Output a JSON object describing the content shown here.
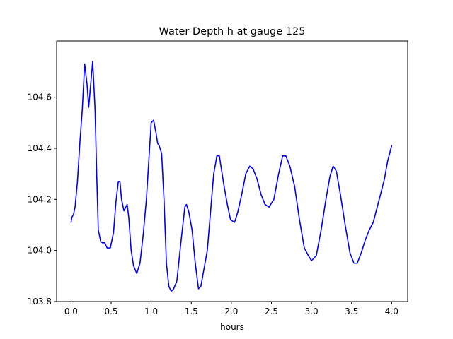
{
  "chart_data": {
    "type": "line",
    "title": "Water Depth h at gauge 125",
    "xlabel": "hours",
    "ylabel": "",
    "xlim": [
      -0.18,
      4.2
    ],
    "ylim": [
      103.8,
      104.82
    ],
    "xticks": [
      0.0,
      0.5,
      1.0,
      1.5,
      2.0,
      2.5,
      3.0,
      3.5,
      4.0
    ],
    "xtick_labels": [
      "0.0",
      "0.5",
      "1.0",
      "1.5",
      "2.0",
      "2.5",
      "3.0",
      "3.5",
      "4.0"
    ],
    "yticks": [
      103.8,
      104.0,
      104.2,
      104.4,
      104.6
    ],
    "ytick_labels": [
      "103.8",
      "104.0",
      "104.2",
      "104.4",
      "104.6"
    ],
    "grid": false,
    "series": [
      {
        "color": "#0000ff",
        "x": [
          0.0,
          0.01,
          0.03,
          0.05,
          0.08,
          0.11,
          0.14,
          0.17,
          0.2,
          0.22,
          0.245,
          0.27,
          0.3,
          0.32,
          0.34,
          0.37,
          0.39,
          0.42,
          0.45,
          0.49,
          0.53,
          0.56,
          0.59,
          0.61,
          0.63,
          0.66,
          0.7,
          0.72,
          0.75,
          0.78,
          0.82,
          0.86,
          0.9,
          0.94,
          0.98,
          1.0,
          1.03,
          1.06,
          1.08,
          1.1,
          1.13,
          1.16,
          1.19,
          1.22,
          1.25,
          1.28,
          1.32,
          1.37,
          1.42,
          1.44,
          1.47,
          1.51,
          1.55,
          1.59,
          1.62,
          1.66,
          1.7,
          1.74,
          1.78,
          1.82,
          1.85,
          1.88,
          1.91,
          1.95,
          1.99,
          2.04,
          2.08,
          2.13,
          2.18,
          2.23,
          2.27,
          2.32,
          2.37,
          2.42,
          2.47,
          2.53,
          2.59,
          2.64,
          2.68,
          2.73,
          2.79,
          2.85,
          2.91,
          2.96,
          3.0,
          3.06,
          3.12,
          3.18,
          3.23,
          3.27,
          3.31,
          3.36,
          3.42,
          3.48,
          3.53,
          3.57,
          3.62,
          3.67,
          3.72,
          3.77,
          3.82,
          3.87,
          3.91,
          3.95,
          4.0
        ],
        "y": [
          104.11,
          104.13,
          104.14,
          104.17,
          104.27,
          104.42,
          104.55,
          104.73,
          104.65,
          104.56,
          104.65,
          104.74,
          104.55,
          104.3,
          104.08,
          104.035,
          104.03,
          104.03,
          104.01,
          104.01,
          104.07,
          104.19,
          104.27,
          104.27,
          104.2,
          104.155,
          104.18,
          104.13,
          104.0,
          103.94,
          103.91,
          103.95,
          104.06,
          104.2,
          104.4,
          104.5,
          104.51,
          104.46,
          104.42,
          104.41,
          104.38,
          104.2,
          103.95,
          103.86,
          103.84,
          103.85,
          103.88,
          104.03,
          104.17,
          104.18,
          104.15,
          104.08,
          103.95,
          103.85,
          103.86,
          103.93,
          104.0,
          104.15,
          104.3,
          104.37,
          104.37,
          104.31,
          104.25,
          104.18,
          104.12,
          104.11,
          104.15,
          104.22,
          104.3,
          104.33,
          104.32,
          104.28,
          104.22,
          104.18,
          104.17,
          104.2,
          104.3,
          104.37,
          104.37,
          104.33,
          104.25,
          104.12,
          104.01,
          103.98,
          103.96,
          103.98,
          104.08,
          104.2,
          104.29,
          104.33,
          104.31,
          104.22,
          104.1,
          103.99,
          103.95,
          103.95,
          103.99,
          104.04,
          104.08,
          104.11,
          104.17,
          104.23,
          104.28,
          104.35,
          104.41
        ]
      }
    ]
  }
}
